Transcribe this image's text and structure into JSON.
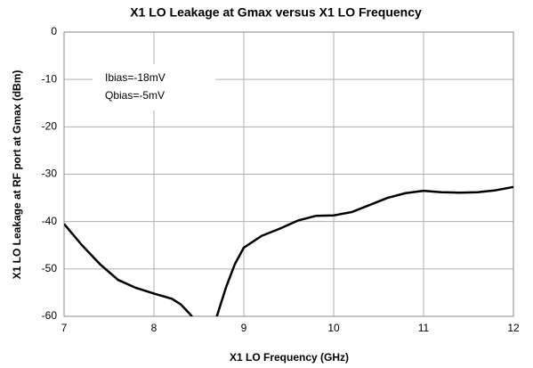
{
  "chart_data": {
    "type": "line",
    "title": "X1 LO Leakage at Gmax  versus X1 LO Frequency",
    "xlabel": "X1 LO Frequency (GHz)",
    "ylabel": "X1 LO Leakage at RF port at Gmax (dBm)",
    "annotations": [
      "Ibias=-18mV",
      "Qbias=-5mV"
    ],
    "x": [
      7.0,
      7.2,
      7.4,
      7.6,
      7.8,
      8.0,
      8.2,
      8.3,
      8.4,
      8.45,
      8.5,
      8.65,
      8.7,
      8.8,
      8.9,
      9.0,
      9.2,
      9.4,
      9.6,
      9.8,
      10.0,
      10.2,
      10.4,
      10.6,
      10.8,
      11.0,
      11.2,
      11.4,
      11.6,
      11.8,
      12.0
    ],
    "series": [
      {
        "name": "X1 LO Leakage",
        "color": "#000000",
        "values": [
          -40.5,
          -45,
          -49,
          -52.3,
          -54,
          -55.2,
          -56.3,
          -57.5,
          -59.5,
          -60.7,
          -62,
          -62,
          -60,
          -54,
          -49,
          -45.5,
          -43,
          -41.5,
          -39.8,
          -38.8,
          -38.7,
          -38,
          -36.5,
          -35,
          -34,
          -33.5,
          -33.8,
          -33.9,
          -33.8,
          -33.4,
          -32.7
        ]
      }
    ],
    "xlim": [
      7,
      12
    ],
    "xticks": [
      7,
      8,
      9,
      10,
      11,
      12
    ],
    "ylim": [
      -60,
      0
    ],
    "yticks": [
      0,
      -10,
      -20,
      -30,
      -40,
      -50,
      -60
    ],
    "grid": true
  }
}
